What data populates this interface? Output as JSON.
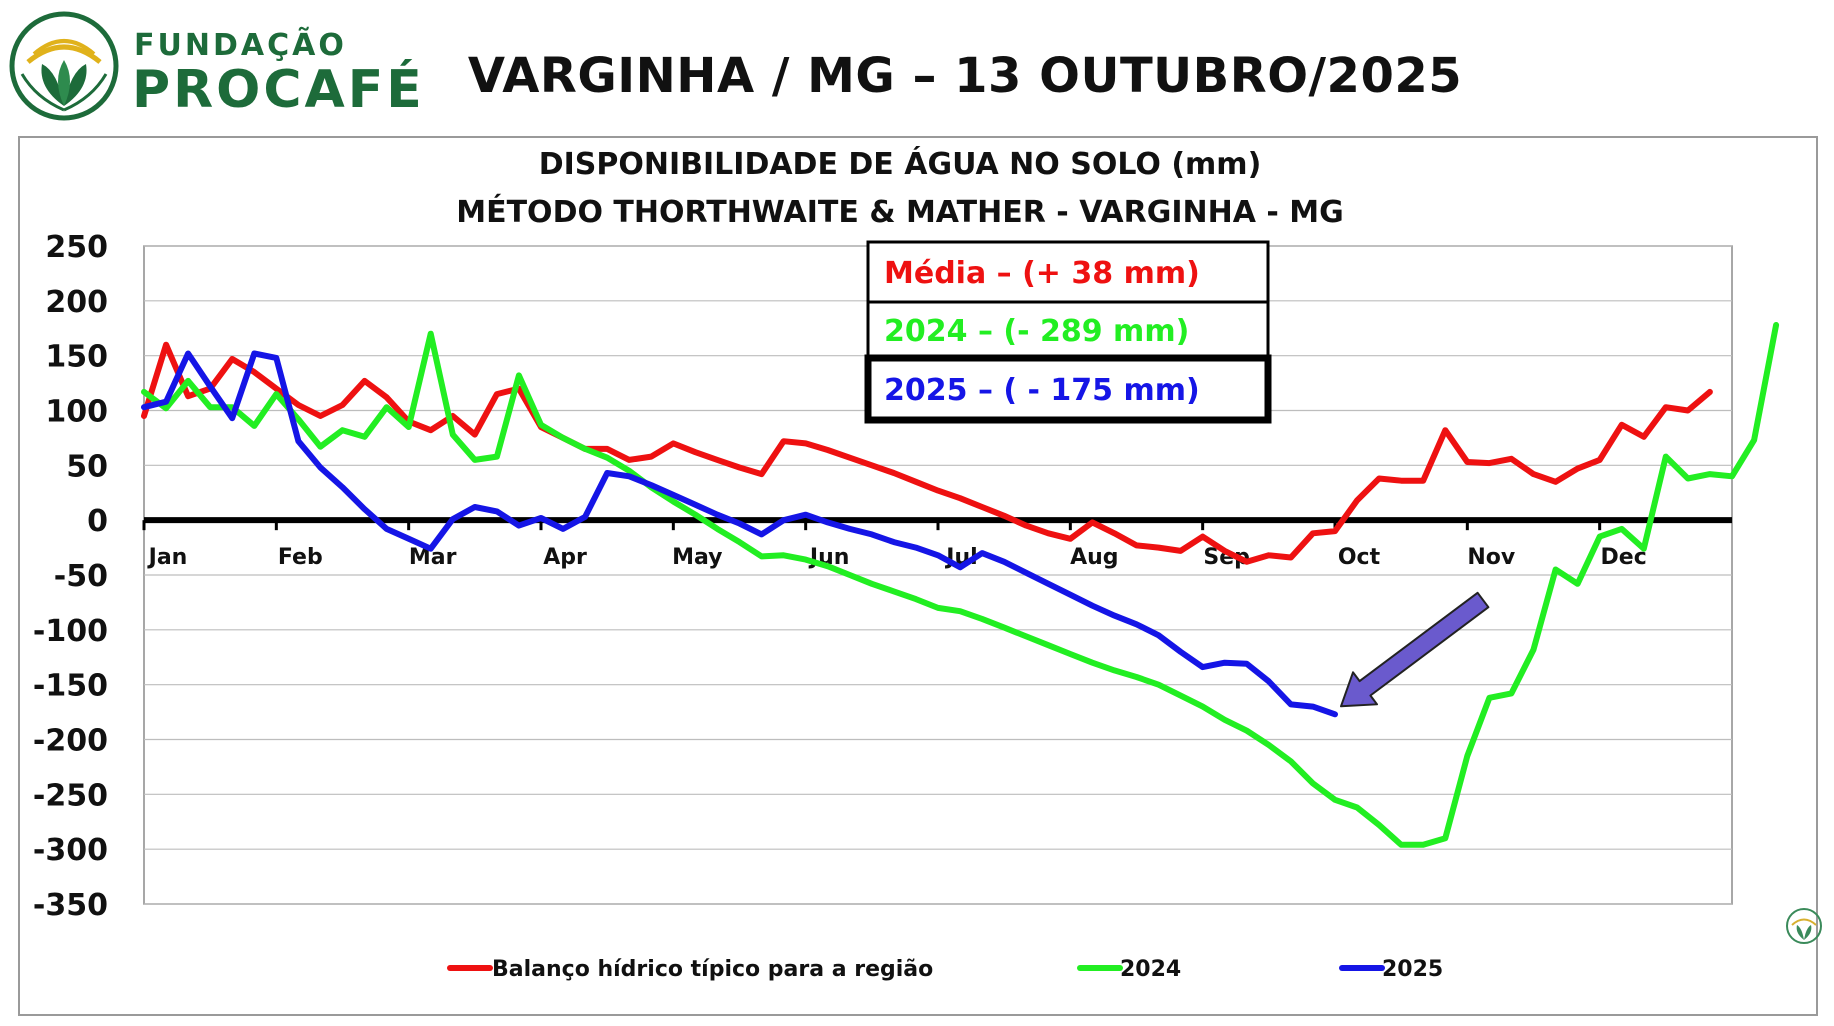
{
  "header": {
    "logo_line1": "FUNDAÇÃO",
    "logo_line2": "PROCAFÉ",
    "title": "VARGINHA / MG – 13 OUTUBRO/2025"
  },
  "colors": {
    "brand_green": "#1d6b3a",
    "media": "#ee1111",
    "y2024": "#22ee22",
    "y2025": "#1515e6",
    "arrow": "#6a5acd"
  },
  "chart_data": {
    "type": "line",
    "title_line1": "DISPONIBILIDADE DE ÁGUA NO SOLO (mm)",
    "title_line2": "MÉTODO THORTHWAITE & MATHER - VARGINHA - MG",
    "ylim": [
      -350,
      250
    ],
    "yticks": [
      250,
      200,
      150,
      100,
      50,
      0,
      -50,
      -100,
      -150,
      -200,
      -250,
      -300,
      -350
    ],
    "xlim": [
      0,
      72
    ],
    "months": [
      {
        "label": "Jan",
        "x": 0
      },
      {
        "label": "Feb",
        "x": 6
      },
      {
        "label": "Mar",
        "x": 12
      },
      {
        "label": "Apr",
        "x": 18
      },
      {
        "label": "May",
        "x": 24
      },
      {
        "label": "Jun",
        "x": 30
      },
      {
        "label": "Jul",
        "x": 36
      },
      {
        "label": "Aug",
        "x": 42
      },
      {
        "label": "Sep",
        "x": 48
      },
      {
        "label": "Oct",
        "x": 54
      },
      {
        "label": "Nov",
        "x": 60
      },
      {
        "label": "Dec",
        "x": 66
      }
    ],
    "grid": "horizontal",
    "annotations": [
      {
        "text": "Média – (+ 38 mm)",
        "series": "media"
      },
      {
        "text": "2024 – (- 289 mm)",
        "series": "y2024"
      },
      {
        "text": "2025 – ( - 175 mm)",
        "series": "y2025"
      }
    ],
    "series": [
      {
        "key": "media",
        "name": "Balanço hídrico típico para a região",
        "color": "#ee1111",
        "values": [
          95,
          160,
          113,
          120,
          147,
          135,
          120,
          105,
          95,
          105,
          127,
          112,
          90,
          82,
          95,
          78,
          115,
          120,
          85,
          75,
          65,
          65,
          55,
          58,
          70,
          62,
          55,
          48,
          42,
          72,
          70,
          64,
          57,
          50,
          43,
          35,
          27,
          20,
          12,
          4,
          -5,
          -12,
          -17,
          -2,
          -12,
          -23,
          -25,
          -28,
          -15,
          -28,
          -38,
          -32,
          -34,
          -12,
          -10,
          18,
          38,
          36,
          36,
          82,
          53,
          52,
          56,
          42,
          35,
          47,
          55,
          87,
          76,
          103,
          100,
          117
        ]
      },
      {
        "key": "y2024",
        "name": "2024",
        "color": "#22ee22",
        "values": [
          117,
          102,
          127,
          103,
          103,
          86,
          115,
          92,
          67,
          82,
          76,
          103,
          85,
          170,
          78,
          55,
          58,
          132,
          87,
          75,
          65,
          57,
          45,
          30,
          17,
          5,
          -8,
          -20,
          -33,
          -32,
          -36,
          -42,
          -50,
          -58,
          -65,
          -72,
          -80,
          -83,
          -90,
          -98,
          -106,
          -114,
          -122,
          -130,
          -137,
          -143,
          -150,
          -160,
          -170,
          -182,
          -192,
          -205,
          -220,
          -240,
          -255,
          -262,
          -278,
          -296,
          -296,
          -290,
          -215,
          -162,
          -158,
          -118,
          -45,
          -58,
          -15,
          -8,
          -26,
          58,
          38,
          42,
          40,
          73,
          178
        ]
      },
      {
        "key": "y2025",
        "name": "2025",
        "color": "#1515e6",
        "values": [
          103,
          108,
          152,
          122,
          93,
          152,
          148,
          72,
          48,
          30,
          10,
          -8,
          -17,
          -26,
          1,
          12,
          8,
          -5,
          2,
          -8,
          3,
          43,
          40,
          32,
          23,
          14,
          5,
          -3,
          -13,
          0,
          5,
          -2,
          -8,
          -13,
          -20,
          -25,
          -32,
          -43,
          -30,
          -38,
          -48,
          -58,
          -68,
          -78,
          -87,
          -95,
          -105,
          -120,
          -134,
          -130,
          -131,
          -147,
          -168,
          -170,
          -177
        ]
      }
    ]
  }
}
